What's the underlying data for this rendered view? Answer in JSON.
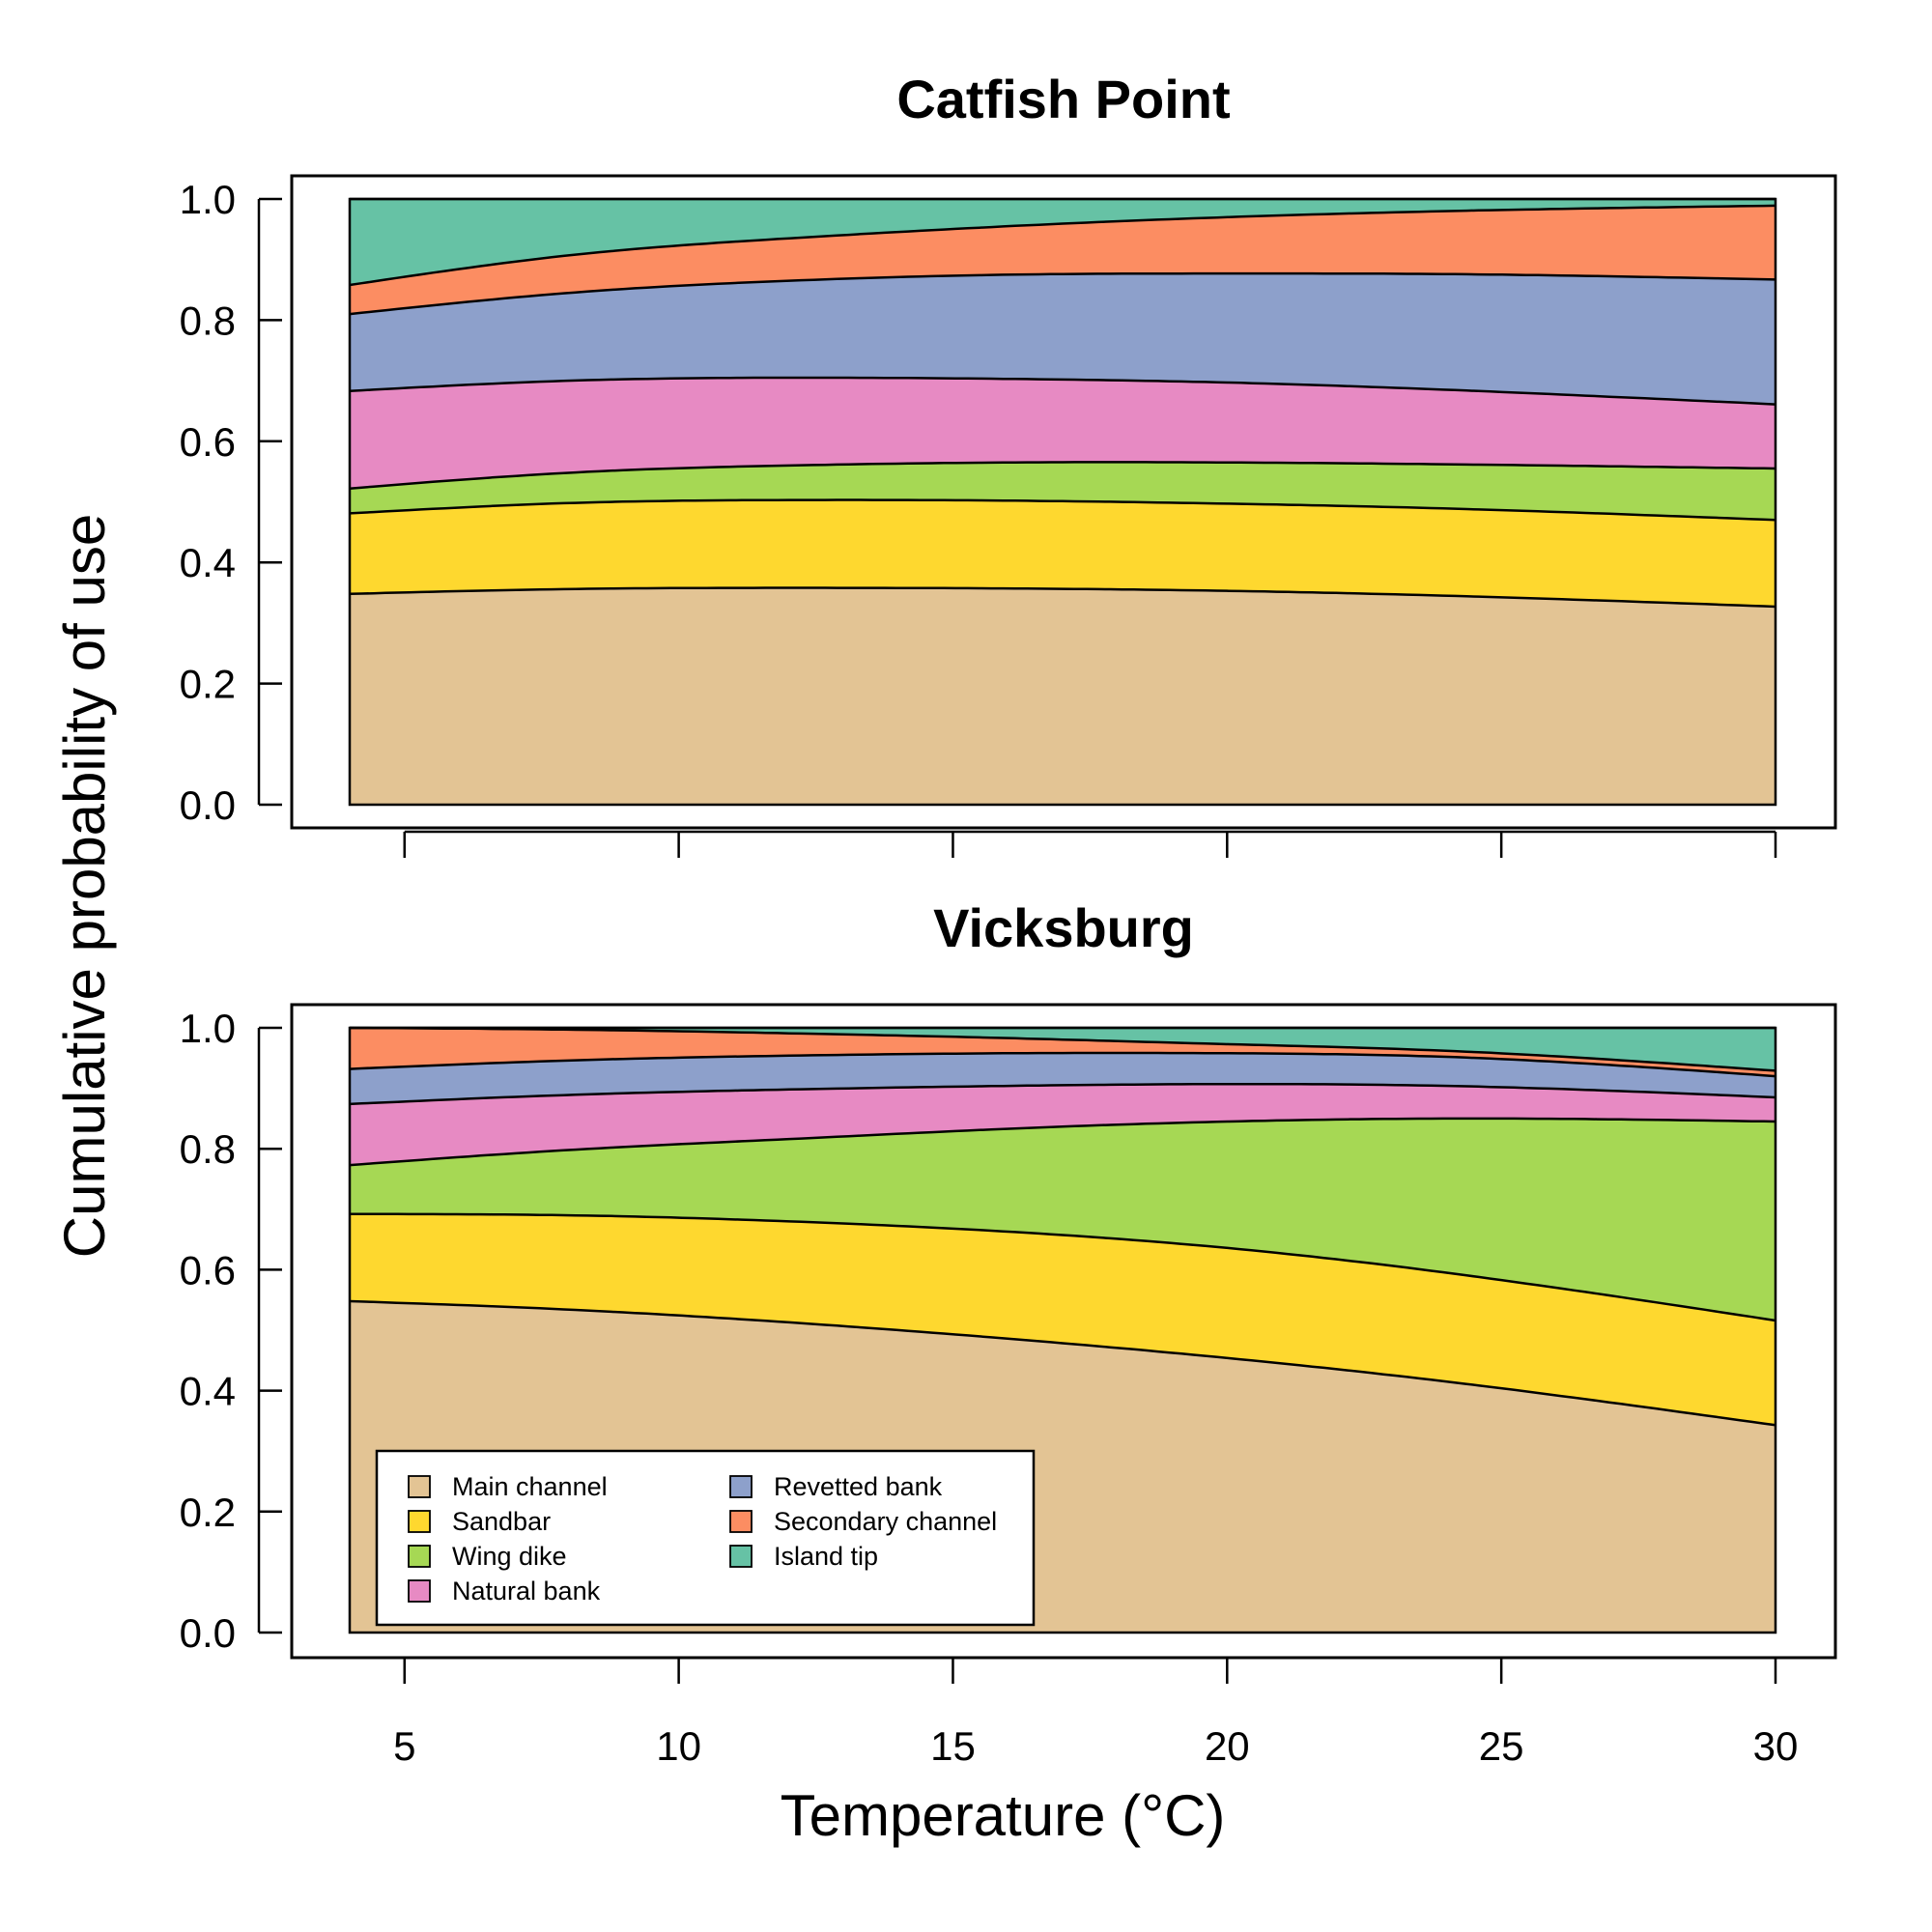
{
  "figure": {
    "ylabel": "Cumulative probability of use",
    "xlabel": "Temperature (°C)"
  },
  "colors": {
    "Main channel": "#E3C494",
    "Sandbar": "#FED82F",
    "Wing dike": "#A6D854",
    "Natural bank": "#E78AC3",
    "Revetted bank": "#8DA0CB",
    "Secondary channel": "#FC8D62",
    "Island tip": "#66C2A5"
  },
  "chart_data": [
    {
      "type": "area",
      "stacked": true,
      "title": "Catfish Point",
      "xlabel": "",
      "ylabel": "Cumulative probability of use",
      "xlim": [
        2,
        32
      ],
      "ylim": [
        0,
        1
      ],
      "x_ticks": [
        5,
        10,
        15,
        20,
        25,
        30
      ],
      "x_tick_labels_shown": false,
      "y_ticks": [
        0.0,
        0.2,
        0.4,
        0.6,
        0.8,
        1.0
      ],
      "y_tick_labels": [
        "0.0",
        "0.2",
        "0.4",
        "0.6",
        "0.8",
        "1.0"
      ],
      "grid": false,
      "x": [
        4,
        8,
        12,
        16,
        20,
        24,
        30
      ],
      "series": [
        {
          "name": "Main channel",
          "cumulative": [
            0.348,
            0.356,
            0.358,
            0.357,
            0.353,
            0.345,
            0.327
          ]
        },
        {
          "name": "Sandbar",
          "cumulative": [
            0.481,
            0.498,
            0.503,
            0.502,
            0.497,
            0.489,
            0.47
          ]
        },
        {
          "name": "Wing dike",
          "cumulative": [
            0.522,
            0.548,
            0.56,
            0.565,
            0.565,
            0.562,
            0.555
          ]
        },
        {
          "name": "Natural bank",
          "cumulative": [
            0.683,
            0.7,
            0.705,
            0.703,
            0.697,
            0.685,
            0.661
          ]
        },
        {
          "name": "Revetted bank",
          "cumulative": [
            0.81,
            0.845,
            0.865,
            0.875,
            0.877,
            0.876,
            0.867
          ]
        },
        {
          "name": "Secondary channel",
          "cumulative": [
            0.858,
            0.907,
            0.935,
            0.955,
            0.97,
            0.98,
            0.989
          ]
        },
        {
          "name": "Island tip",
          "cumulative": [
            1.0,
            1.0,
            1.0,
            1.0,
            1.0,
            1.0,
            1.0
          ]
        }
      ]
    },
    {
      "type": "area",
      "stacked": true,
      "title": "Vicksburg",
      "xlabel": "Temperature (°C)",
      "ylabel": "Cumulative probability of use",
      "xlim": [
        2,
        32
      ],
      "ylim": [
        0,
        1
      ],
      "x_ticks": [
        5,
        10,
        15,
        20,
        25,
        30
      ],
      "x_tick_labels": [
        "5",
        "10",
        "15",
        "20",
        "25",
        "30"
      ],
      "y_ticks": [
        0.0,
        0.2,
        0.4,
        0.6,
        0.8,
        1.0
      ],
      "y_tick_labels": [
        "0.0",
        "0.2",
        "0.4",
        "0.6",
        "0.8",
        "1.0"
      ],
      "grid": false,
      "legend_placement": "bottom-left",
      "legend": [
        "Main channel",
        "Sandbar",
        "Wing dike",
        "Natural bank",
        "Revetted bank",
        "Secondary channel",
        "Island tip"
      ],
      "x": [
        4,
        8,
        12,
        16,
        20,
        24,
        30
      ],
      "series": [
        {
          "name": "Main channel",
          "cumulative": [
            0.548,
            0.534,
            0.513,
            0.486,
            0.454,
            0.415,
            0.343
          ]
        },
        {
          "name": "Sandbar",
          "cumulative": [
            0.692,
            0.69,
            0.68,
            0.663,
            0.636,
            0.595,
            0.516
          ]
        },
        {
          "name": "Wing dike",
          "cumulative": [
            0.773,
            0.798,
            0.816,
            0.833,
            0.845,
            0.85,
            0.845
          ]
        },
        {
          "name": "Natural bank",
          "cumulative": [
            0.874,
            0.889,
            0.898,
            0.904,
            0.907,
            0.904,
            0.885
          ]
        },
        {
          "name": "Revetted bank",
          "cumulative": [
            0.932,
            0.946,
            0.954,
            0.958,
            0.958,
            0.952,
            0.92
          ]
        },
        {
          "name": "Secondary channel",
          "cumulative": [
            1.0,
            0.997,
            0.991,
            0.983,
            0.973,
            0.962,
            0.929
          ]
        },
        {
          "name": "Island tip",
          "cumulative": [
            1.0,
            1.0,
            1.0,
            1.0,
            1.0,
            1.0,
            1.0
          ]
        }
      ]
    }
  ]
}
